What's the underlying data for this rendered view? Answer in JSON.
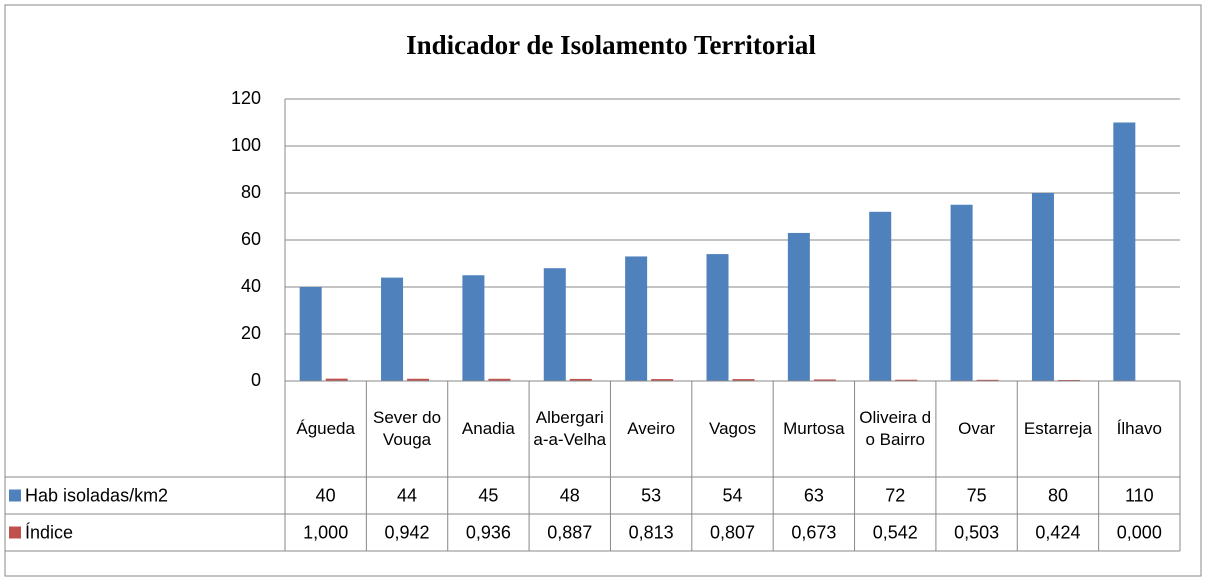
{
  "chart_data": {
    "type": "bar",
    "title": "Indicador de Isolamento Territorial",
    "categories": [
      "Águeda",
      "Sever do Vouga",
      "Anadia",
      "Albergaria-a-Velha",
      "Aveiro",
      "Vagos",
      "Murtosa",
      "Oliveira do Bairro",
      "Ovar",
      "Estarreja",
      "Ílhavo"
    ],
    "series": [
      {
        "name": "Hab isoladas/km2",
        "color": "#4f81bd",
        "values": [
          40,
          44,
          45,
          48,
          53,
          54,
          63,
          72,
          75,
          80,
          110
        ]
      },
      {
        "name": "Índice",
        "color": "#c0504d",
        "values": [
          1.0,
          0.942,
          0.936,
          0.887,
          0.813,
          0.807,
          0.673,
          0.542,
          0.503,
          0.424,
          0.0
        ],
        "value_labels": [
          "1,000",
          "0,942",
          "0,936",
          "0,887",
          "0,813",
          "0,807",
          "0,673",
          "0,542",
          "0,503",
          "0,424",
          "0,000"
        ]
      }
    ],
    "ylim": [
      0,
      120
    ],
    "yticks": [
      0,
      20,
      40,
      60,
      80,
      100,
      120
    ],
    "grid": true,
    "data_table": true
  }
}
